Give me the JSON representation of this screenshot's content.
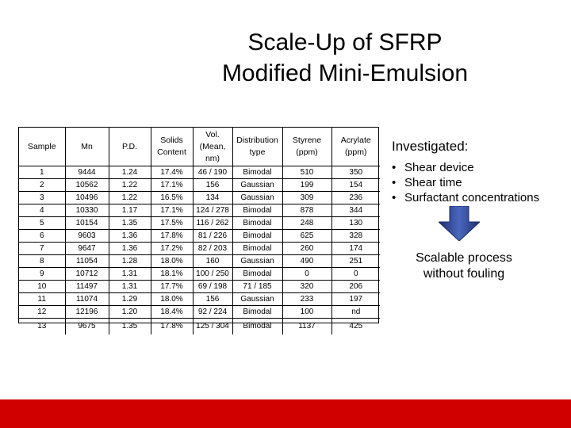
{
  "title": {
    "line1": "Scale-Up of SFRP",
    "line2": "Modified Mini-Emulsion"
  },
  "table": {
    "headers": [
      "Sample",
      "Mn",
      "P.D.",
      "Solids Content",
      "Vol. (Mean, nm)",
      "Distribution type",
      "Styrene (ppm)",
      "Acrylate (ppm)"
    ],
    "rows": [
      [
        "1",
        "9444",
        "1.24",
        "17.4%",
        "46 / 190",
        "Bimodal",
        "510",
        "350"
      ],
      [
        "2",
        "10562",
        "1.22",
        "17.1%",
        "156",
        "Gaussian",
        "199",
        "154"
      ],
      [
        "3",
        "10496",
        "1.22",
        "16.5%",
        "134",
        "Gaussian",
        "309",
        "236"
      ],
      [
        "4",
        "10330",
        "1.17",
        "17.1%",
        "124 / 278",
        "Bimodal",
        "878",
        "344"
      ],
      [
        "5",
        "10154",
        "1.35",
        "17.5%",
        "116 / 262",
        "Bimodal",
        "248",
        "130"
      ],
      [
        "6",
        "9603",
        "1.36",
        "17.8%",
        "81 / 226",
        "Bimodal",
        "625",
        "328"
      ],
      [
        "7",
        "9647",
        "1.36",
        "17.2%",
        "82 / 203",
        "Bimodal",
        "260",
        "174"
      ],
      [
        "8",
        "11054",
        "1.28",
        "18.0%",
        "160",
        "Gaussian",
        "490",
        "251"
      ],
      [
        "9",
        "10712",
        "1.31",
        "18.1%",
        "100 / 250",
        "Bimodal",
        "0",
        "0"
      ],
      [
        "10",
        "11497",
        "1.31",
        "17.7%",
        "69 / 198",
        "71 / 185",
        "320",
        "206"
      ],
      [
        "11",
        "11074",
        "1.29",
        "18.0%",
        "156",
        "Gaussian",
        "233",
        "197"
      ],
      [
        "12",
        "12196",
        "1.20",
        "18.4%",
        "92 / 224",
        "Bimodal",
        "100",
        "nd"
      ],
      [
        "13",
        "9675",
        "1.35",
        "17.8%",
        "125 / 304",
        "Bimodal",
        "1137",
        "425"
      ]
    ]
  },
  "investigated": {
    "heading": "Investigated:",
    "items": [
      "Shear device",
      "Shear time",
      "Surfactant concentrations"
    ]
  },
  "result": {
    "text": "Scalable process without fouling"
  },
  "colors": {
    "footer_bar": "#d00000",
    "arrow_fill": "#3a55a8"
  },
  "icons": {
    "arrow": "down-arrow-icon"
  }
}
